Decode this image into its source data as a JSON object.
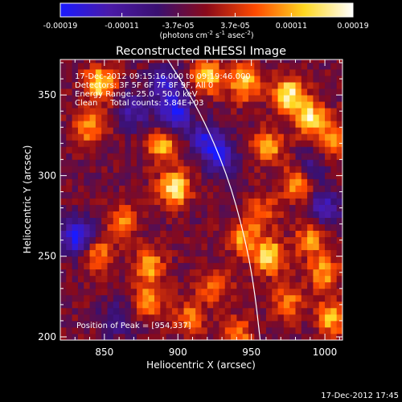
{
  "colorbar": {
    "tick_labels": [
      "-0.00019",
      "-0.00011",
      "-3.7e-05",
      "3.7e-05",
      "0.00011",
      "0.00019"
    ],
    "tick_values": [
      -0.00019,
      -0.00011,
      -3.7e-05,
      3.7e-05,
      0.00011,
      0.00019
    ],
    "range": [
      -0.00019,
      0.00019
    ],
    "colormap": "blue-purple-red-yellow-white",
    "stops": [
      "#1a1aff",
      "#4a1aa8",
      "#3a1070",
      "#8a0a1a",
      "#ff4a00",
      "#ffd820",
      "#ffffff"
    ]
  },
  "units_label": {
    "base": "(photons cm",
    "exp1": "-2",
    "mid": " s",
    "exp2": "-1",
    "mid2": " asec",
    "exp3": "-2",
    "end": ")"
  },
  "chart_data": {
    "type": "heatmap",
    "title": "Reconstructed RHESSI Image",
    "xlabel": "Heliocentric X (arcsec)",
    "ylabel": "Heliocentric Y (arcsec)",
    "xlim": [
      820,
      1012
    ],
    "ylim": [
      198,
      372
    ],
    "xticks": [
      850,
      900,
      950,
      1000
    ],
    "yticks": [
      200,
      250,
      300,
      350
    ],
    "x_tick_labels": [
      "850",
      "900",
      "950",
      "1000"
    ],
    "y_tick_labels": [
      "200",
      "250",
      "300",
      "350"
    ],
    "info_lines": [
      "17-Dec-2012 09:15:16.000 to 09:19:46.000",
      "Detectors: 3F 5F 6F 7F 8F 9F, All 0",
      "Energy Range: 25.0 - 50.0 keV",
      "Clean     Total counts: 5.84E+03"
    ],
    "peak_label": "Position of Peak = [954,337]",
    "peak_position": [
      954,
      337
    ],
    "limb_curve": [
      [
        893,
        372
      ],
      [
        915,
        340
      ],
      [
        934,
        300
      ],
      [
        946,
        260
      ],
      [
        952,
        230
      ],
      [
        956,
        198
      ]
    ],
    "hot_spots": [
      {
        "x": 847,
        "y": 357,
        "value": 0.00017
      },
      {
        "x": 840,
        "y": 330,
        "value": 0.00012
      },
      {
        "x": 890,
        "y": 318,
        "value": 0.00013
      },
      {
        "x": 898,
        "y": 292,
        "value": 0.00018
      },
      {
        "x": 862,
        "y": 272,
        "value": 0.0001
      },
      {
        "x": 845,
        "y": 252,
        "value": 0.00011
      },
      {
        "x": 880,
        "y": 244,
        "value": 0.00013
      },
      {
        "x": 880,
        "y": 222,
        "value": 0.00012
      },
      {
        "x": 920,
        "y": 362,
        "value": 0.00015
      },
      {
        "x": 945,
        "y": 358,
        "value": 0.00016
      },
      {
        "x": 975,
        "y": 350,
        "value": 0.00019
      },
      {
        "x": 990,
        "y": 336,
        "value": 0.00017
      },
      {
        "x": 962,
        "y": 318,
        "value": 0.00012
      },
      {
        "x": 982,
        "y": 296,
        "value": 0.00013
      },
      {
        "x": 1005,
        "y": 322,
        "value": 0.00012
      },
      {
        "x": 958,
        "y": 278,
        "value": 9e-05
      },
      {
        "x": 945,
        "y": 262,
        "value": 0.00012
      },
      {
        "x": 962,
        "y": 250,
        "value": 0.00017
      },
      {
        "x": 990,
        "y": 260,
        "value": 0.00011
      },
      {
        "x": 1000,
        "y": 240,
        "value": 0.00012
      },
      {
        "x": 1005,
        "y": 212,
        "value": 0.00014
      },
      {
        "x": 975,
        "y": 222,
        "value": 0.0001
      },
      {
        "x": 925,
        "y": 232,
        "value": 0.00011
      },
      {
        "x": 908,
        "y": 212,
        "value": 0.0001
      },
      {
        "x": 940,
        "y": 202,
        "value": 0.00011
      }
    ],
    "cold_spots": [
      {
        "x": 832,
        "y": 262,
        "value": -0.00018
      },
      {
        "x": 898,
        "y": 338,
        "value": -0.00017
      },
      {
        "x": 920,
        "y": 322,
        "value": -0.00014
      },
      {
        "x": 930,
        "y": 312,
        "value": -0.00012
      },
      {
        "x": 892,
        "y": 357,
        "value": -0.00013
      },
      {
        "x": 870,
        "y": 340,
        "value": -0.0001
      },
      {
        "x": 1000,
        "y": 280,
        "value": -0.00012
      },
      {
        "x": 990,
        "y": 305,
        "value": -9e-05
      },
      {
        "x": 860,
        "y": 212,
        "value": -8e-05
      }
    ]
  },
  "footer": {
    "timestamp": "17-Dec-2012 17:45"
  }
}
